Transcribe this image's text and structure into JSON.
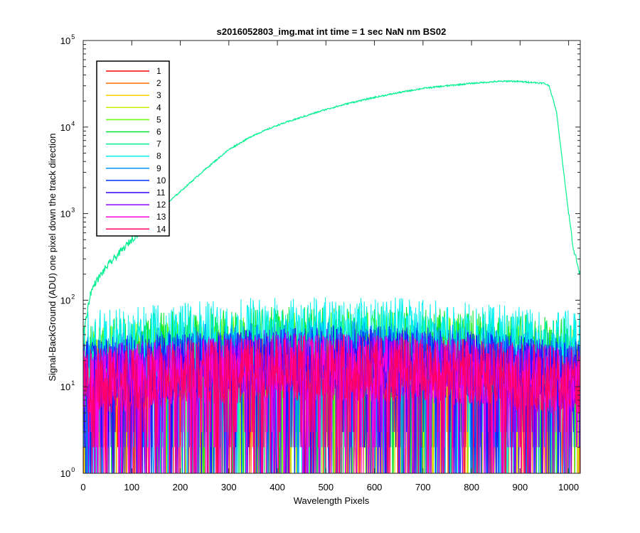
{
  "chart_data": {
    "type": "line",
    "title": "s2016052803_img.mat int time = 1 sec  NaN nm BS02",
    "xlabel": "Wavelength Pixels",
    "ylabel": "Signal-BackGround (ADU) one pixel down the track direction",
    "xlim": [
      0,
      1024
    ],
    "ylim": [
      1,
      100000
    ],
    "yscale": "log",
    "grid": false,
    "legend_position": "top-left",
    "x_ticks": [
      "0",
      "100",
      "200",
      "300",
      "400",
      "500",
      "600",
      "700",
      "800",
      "900",
      "1000"
    ],
    "y_ticks": [
      {
        "base": "10",
        "exp": "0"
      },
      {
        "base": "10",
        "exp": "1"
      },
      {
        "base": "10",
        "exp": "2"
      },
      {
        "base": "10",
        "exp": "3"
      },
      {
        "base": "10",
        "exp": "4"
      },
      {
        "base": "10",
        "exp": "5"
      }
    ],
    "bright_series": {
      "name": "7",
      "x": [
        0,
        15,
        25,
        50,
        100,
        150,
        200,
        250,
        300,
        350,
        400,
        450,
        500,
        550,
        600,
        650,
        700,
        750,
        800,
        850,
        880,
        920,
        950,
        960,
        975,
        990,
        1000,
        1010,
        1023
      ],
      "y": [
        40,
        120,
        160,
        250,
        500,
        1000,
        1800,
        3200,
        5500,
        8000,
        10500,
        13000,
        16000,
        19000,
        22000,
        25000,
        28000,
        30000,
        32000,
        33500,
        34000,
        33000,
        32000,
        30000,
        15000,
        3000,
        1000,
        400,
        200
      ]
    },
    "noise_series": [
      {
        "name": "1",
        "level": 12
      },
      {
        "name": "2",
        "level": 12
      },
      {
        "name": "3",
        "level": 13
      },
      {
        "name": "4",
        "level": 14
      },
      {
        "name": "5",
        "level": 20
      },
      {
        "name": "6",
        "level": 24
      },
      {
        "name": "8",
        "level": 30
      },
      {
        "name": "9",
        "level": 16
      },
      {
        "name": "10",
        "level": 14
      },
      {
        "name": "11",
        "level": 13
      },
      {
        "name": "12",
        "level": 12
      },
      {
        "name": "13",
        "level": 11
      },
      {
        "name": "14",
        "level": 11
      }
    ],
    "legend": [
      {
        "label": "1",
        "color": "#ff0000"
      },
      {
        "label": "2",
        "color": "#ff6f00"
      },
      {
        "label": "3",
        "color": "#ffd200"
      },
      {
        "label": "4",
        "color": "#c8f000"
      },
      {
        "label": "5",
        "color": "#64ff00"
      },
      {
        "label": "6",
        "color": "#00e632"
      },
      {
        "label": "7",
        "color": "#00f090"
      },
      {
        "label": "8",
        "color": "#00f0f0"
      },
      {
        "label": "9",
        "color": "#0096ff"
      },
      {
        "label": "10",
        "color": "#0032ff"
      },
      {
        "label": "11",
        "color": "#3200ff"
      },
      {
        "label": "12",
        "color": "#9600ff"
      },
      {
        "label": "13",
        "color": "#ff00e0"
      },
      {
        "label": "14",
        "color": "#ff0064"
      }
    ]
  }
}
